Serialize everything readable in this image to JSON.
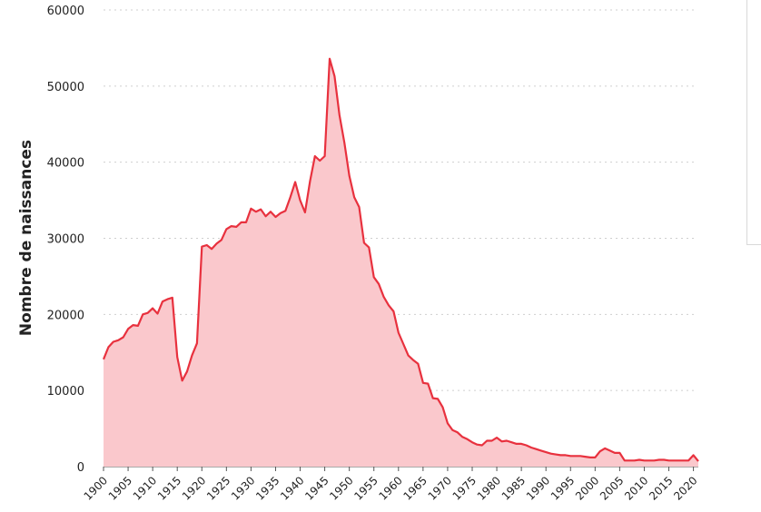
{
  "chart_data": {
    "type": "area",
    "title": "",
    "xlabel": "",
    "ylabel": "Nombre de naissances",
    "xlim": [
      1900,
      2021
    ],
    "ylim": [
      0,
      60000
    ],
    "yticks": [
      0,
      10000,
      20000,
      30000,
      40000,
      50000,
      60000
    ],
    "ytick_labels": [
      "0",
      "10000",
      "20000",
      "30000",
      "40000",
      "50000",
      "60000"
    ],
    "xticks": [
      1900,
      1905,
      1910,
      1915,
      1920,
      1925,
      1930,
      1935,
      1940,
      1945,
      1950,
      1955,
      1960,
      1965,
      1970,
      1975,
      1980,
      1985,
      1990,
      1995,
      2000,
      2005,
      2010,
      2015,
      2020
    ],
    "xtick_labels": [
      "1900",
      "1905",
      "1910",
      "1915",
      "1920",
      "1925",
      "1930",
      "1935",
      "1940",
      "1945",
      "1950",
      "1955",
      "1960",
      "1965",
      "1970",
      "1975",
      "1980",
      "1985",
      "1990",
      "1995",
      "2000",
      "2005",
      "2010",
      "2015",
      "2020"
    ],
    "grid": "horizontal-dotted",
    "colors": {
      "line": "#e8313e",
      "fill": "#fac8cc"
    },
    "x": [
      1900,
      1901,
      1902,
      1903,
      1904,
      1905,
      1906,
      1907,
      1908,
      1909,
      1910,
      1911,
      1912,
      1913,
      1914,
      1915,
      1916,
      1917,
      1918,
      1919,
      1920,
      1921,
      1922,
      1923,
      1924,
      1925,
      1926,
      1927,
      1928,
      1929,
      1930,
      1931,
      1932,
      1933,
      1934,
      1935,
      1936,
      1937,
      1938,
      1939,
      1940,
      1941,
      1942,
      1943,
      1944,
      1945,
      1946,
      1947,
      1948,
      1949,
      1950,
      1951,
      1952,
      1953,
      1954,
      1955,
      1956,
      1957,
      1958,
      1959,
      1960,
      1961,
      1962,
      1963,
      1964,
      1965,
      1966,
      1967,
      1968,
      1969,
      1970,
      1971,
      1972,
      1973,
      1974,
      1975,
      1976,
      1977,
      1978,
      1979,
      1980,
      1981,
      1982,
      1983,
      1984,
      1985,
      1986,
      1987,
      1988,
      1989,
      1990,
      1991,
      1992,
      1993,
      1994,
      1995,
      1996,
      1997,
      1998,
      1999,
      2000,
      2001,
      2002,
      2003,
      2004,
      2005,
      2006,
      2007,
      2008,
      2009,
      2010,
      2011,
      2012,
      2013,
      2014,
      2015,
      2016,
      2017,
      2018,
      2019,
      2020,
      2021
    ],
    "y": [
      14100,
      15700,
      16400,
      16600,
      17000,
      18100,
      18600,
      18500,
      20000,
      20200,
      20800,
      20100,
      21700,
      22000,
      22200,
      14400,
      11300,
      12500,
      14600,
      16200,
      28900,
      29100,
      28600,
      29300,
      29800,
      31200,
      31600,
      31500,
      32100,
      32100,
      33900,
      33500,
      33800,
      32900,
      33500,
      32800,
      33300,
      33600,
      35400,
      37400,
      35000,
      33400,
      37500,
      40800,
      40200,
      40800,
      53600,
      51300,
      46200,
      42600,
      38200,
      35400,
      34100,
      29400,
      28800,
      24900,
      24000,
      22300,
      21200,
      20400,
      17600,
      16100,
      14600,
      14000,
      13500,
      11000,
      10900,
      9000,
      8900,
      7800,
      5700,
      4800,
      4500,
      3900,
      3600,
      3200,
      2900,
      2800,
      3400,
      3400,
      3800,
      3300,
      3400,
      3200,
      3000,
      3000,
      2800,
      2500,
      2300,
      2100,
      1900,
      1700,
      1600,
      1500,
      1500,
      1400,
      1400,
      1400,
      1300,
      1200,
      1200,
      2000,
      2400,
      2100,
      1800,
      1800,
      800,
      800,
      800,
      900,
      800,
      800,
      800,
      900,
      900,
      800,
      800,
      800,
      800,
      800,
      1500,
      700
    ]
  }
}
